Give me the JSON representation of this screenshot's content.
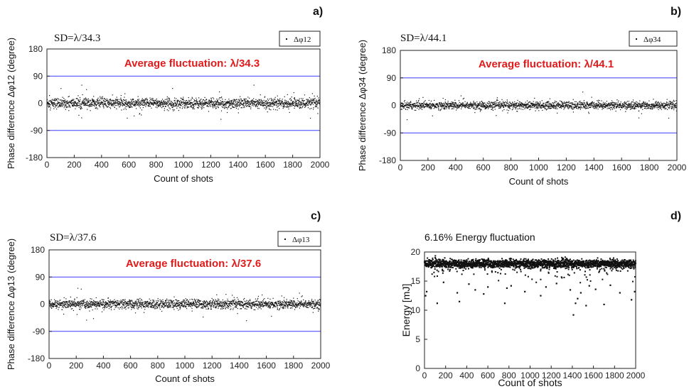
{
  "chart_data": [
    {
      "panel": "a)",
      "type": "scatter",
      "sd_label": "SD=λ/34.3",
      "annotation": "Average fluctuation: λ/34.3",
      "legend": "Δφ12",
      "xlabel": "Count of shots",
      "ylabel": "Phase difference Δφ12 (degree)",
      "xlim": [
        0,
        2000
      ],
      "ylim": [
        -180,
        180
      ],
      "xticks": [
        0,
        200,
        400,
        600,
        800,
        1000,
        1200,
        1400,
        1600,
        1800,
        2000
      ],
      "yticks": [
        180,
        90,
        0,
        -90,
        -180
      ],
      "reference_lines": [
        90,
        -90
      ],
      "n_points": 2000,
      "mean": 0,
      "sd_degrees": 10.5
    },
    {
      "panel": "b)",
      "type": "scatter",
      "sd_label": "SD=λ/44.1",
      "annotation": "Average fluctuation: λ/44.1",
      "legend": "Δφ34",
      "xlabel": "Count of shots",
      "ylabel": "Phase difference Δφ34 (degree)",
      "xlim": [
        0,
        2000
      ],
      "ylim": [
        -180,
        180
      ],
      "xticks": [
        0,
        200,
        400,
        600,
        800,
        1000,
        1200,
        1400,
        1600,
        1800,
        2000
      ],
      "yticks": [
        180,
        90,
        0,
        -90,
        -180
      ],
      "reference_lines": [
        90,
        -90
      ],
      "n_points": 2000,
      "mean": 0,
      "sd_degrees": 8.2
    },
    {
      "panel": "c)",
      "type": "scatter",
      "sd_label": "SD=λ/37.6",
      "annotation": "Average fluctuation: λ/37.6",
      "legend": "Δφ13",
      "xlabel": "Count of shots",
      "ylabel": "Phase difference Δφ13 (degree)",
      "xlim": [
        0,
        2000
      ],
      "ylim": [
        -180,
        180
      ],
      "xticks": [
        0,
        200,
        400,
        600,
        800,
        1000,
        1200,
        1400,
        1600,
        1800,
        2000
      ],
      "yticks": [
        180,
        90,
        0,
        -90,
        -180
      ],
      "reference_lines": [
        90,
        -90
      ],
      "n_points": 2000,
      "mean": 0,
      "sd_degrees": 9.6
    },
    {
      "panel": "d)",
      "type": "scatter",
      "title": "6.16% Energy fluctuation",
      "xlabel": "Count of shots",
      "ylabel": "Energy [mJ]",
      "xlim": [
        0,
        2000
      ],
      "ylim": [
        0,
        20
      ],
      "xticks": [
        0,
        200,
        400,
        600,
        800,
        1000,
        1200,
        1400,
        1600,
        1800,
        2000
      ],
      "yticks": [
        20,
        15,
        10,
        5,
        0
      ],
      "n_points": 2000,
      "mean": 18,
      "band": [
        17,
        19
      ],
      "outliers": [
        [
          10,
          12.5
        ],
        [
          20,
          13.2
        ],
        [
          120,
          11.2
        ],
        [
          180,
          14.8
        ],
        [
          310,
          13.0
        ],
        [
          330,
          11.5
        ],
        [
          420,
          14.5
        ],
        [
          480,
          13.5
        ],
        [
          560,
          12.8
        ],
        [
          600,
          14.0
        ],
        [
          760,
          11.2
        ],
        [
          780,
          13.8
        ],
        [
          820,
          14.2
        ],
        [
          950,
          13.2
        ],
        [
          1100,
          12.5
        ],
        [
          1150,
          14.0
        ],
        [
          1250,
          14.6
        ],
        [
          1380,
          13.5
        ],
        [
          1410,
          9.2
        ],
        [
          1430,
          11.2
        ],
        [
          1450,
          12.0
        ],
        [
          1480,
          13.0
        ],
        [
          1530,
          10.8
        ],
        [
          1560,
          14.2
        ],
        [
          1620,
          13.6
        ],
        [
          1700,
          11.0
        ],
        [
          1760,
          14.3
        ],
        [
          1850,
          13.0
        ],
        [
          1960,
          11.8
        ],
        [
          1990,
          13.2
        ]
      ]
    }
  ]
}
